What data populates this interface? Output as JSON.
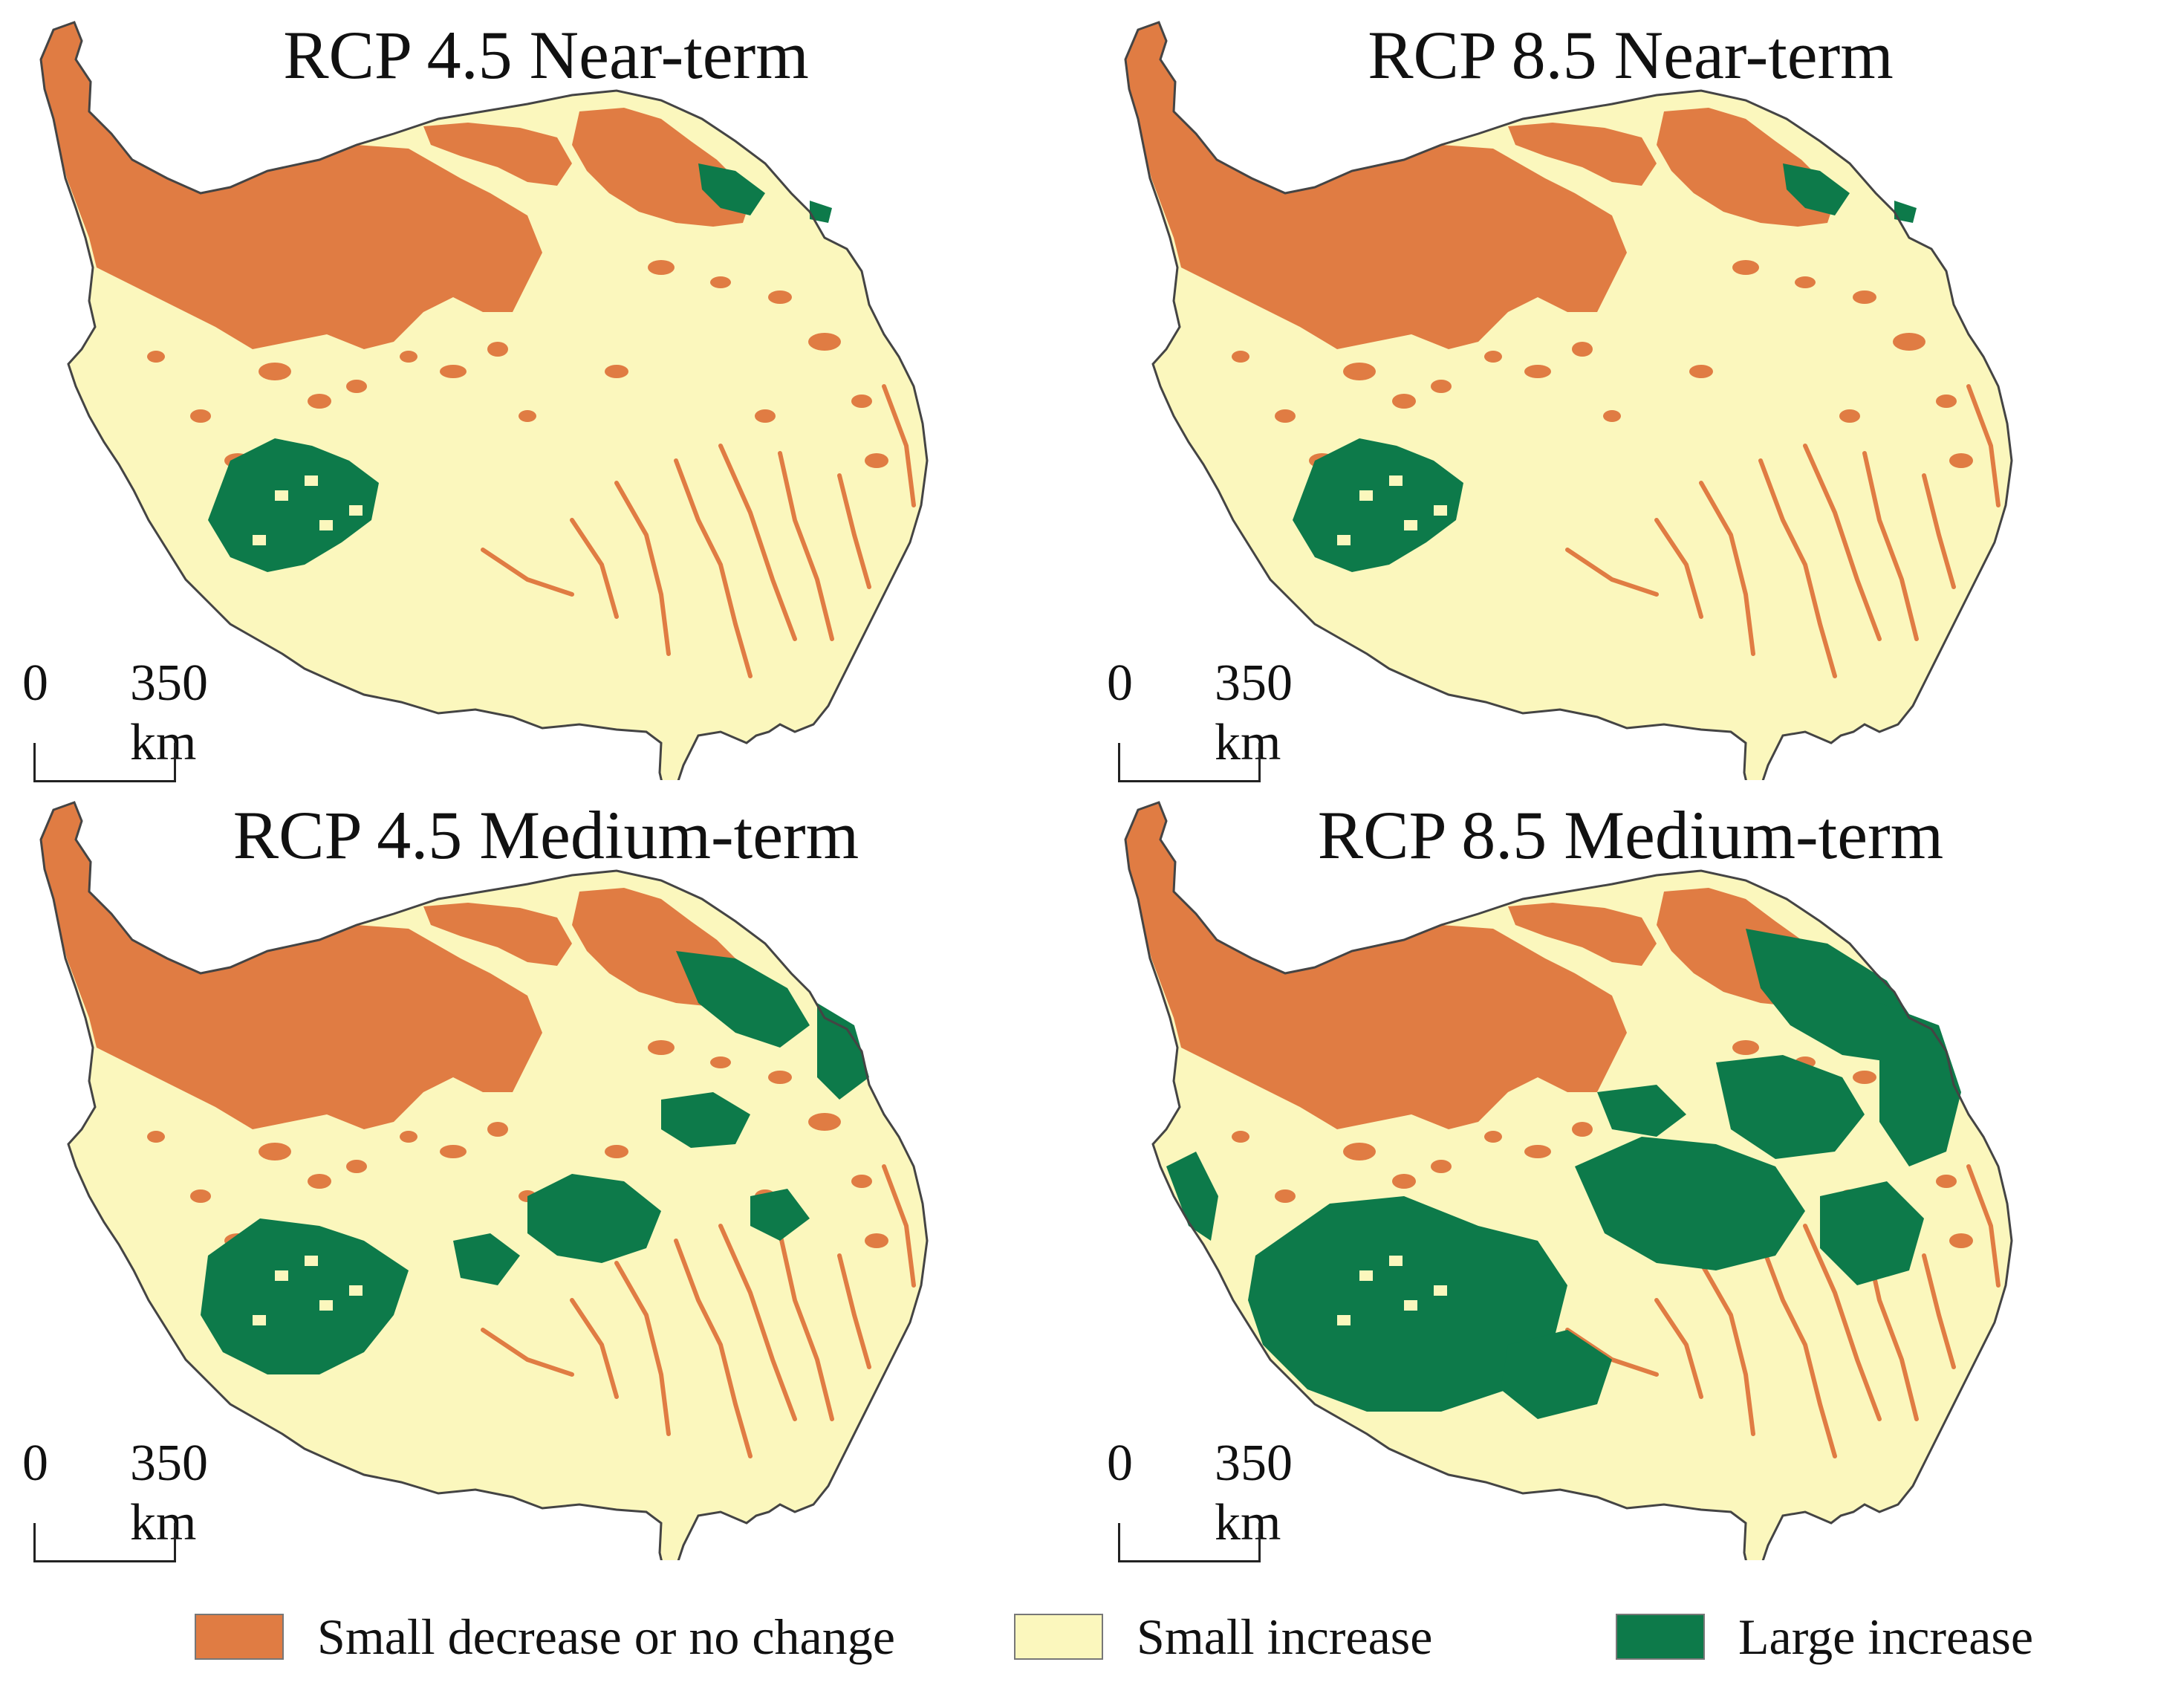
{
  "colors": {
    "decrease": "#e07c43",
    "small_increase": "#fbf7bd",
    "large_increase": "#0d7a4a",
    "outline": "#444444"
  },
  "panels": [
    {
      "title": "RCP 4.5 Near-term",
      "scale_zero": "0",
      "scale_distance": "350 km",
      "large_increase_level": 1
    },
    {
      "title": "RCP 8.5 Near-term",
      "scale_zero": "0",
      "scale_distance": "350 km",
      "large_increase_level": 1
    },
    {
      "title": "RCP 4.5 Medium-term",
      "scale_zero": "0",
      "scale_distance": "350 km",
      "large_increase_level": 2
    },
    {
      "title": "RCP 8.5 Medium-term",
      "scale_zero": "0",
      "scale_distance": "350 km",
      "large_increase_level": 3
    }
  ],
  "legend": {
    "items": [
      {
        "label": "Small decrease or no change",
        "color_key": "decrease"
      },
      {
        "label": "Small increase",
        "color_key": "small_increase"
      },
      {
        "label": "Large increase",
        "color_key": "large_increase"
      }
    ]
  }
}
